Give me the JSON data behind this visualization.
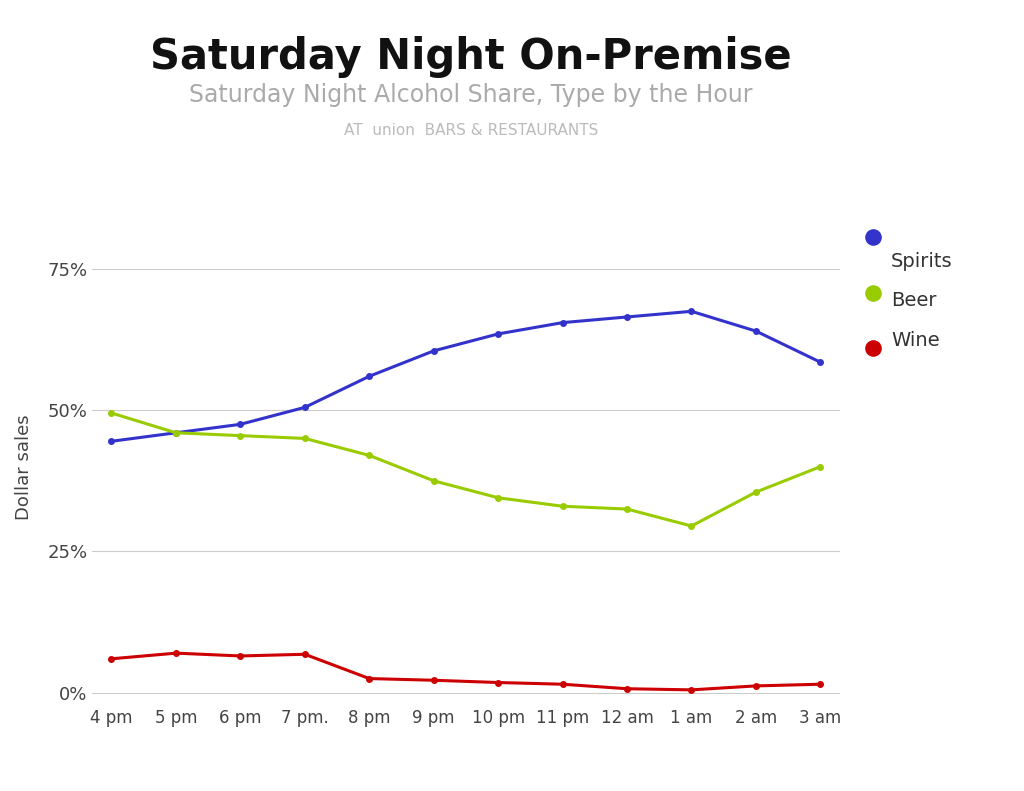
{
  "title": "Saturday Night On-Premise",
  "subtitle": "Saturday Night Alcohol Share, Type by the Hour",
  "xlabel_ticks": [
    "4 pm",
    "5 pm",
    "6 pm",
    "7 pm.",
    "8 pm",
    "9 pm",
    "10 pm",
    "11 pm",
    "12 am",
    "1 am",
    "2 am",
    "3 am"
  ],
  "ylabel": "Dollar sales",
  "yticks": [
    0.0,
    0.25,
    0.5,
    0.75
  ],
  "ytick_labels": [
    "0%",
    "25%",
    "50%",
    "75%"
  ],
  "spirits": [
    0.445,
    0.46,
    0.475,
    0.505,
    0.56,
    0.605,
    0.635,
    0.655,
    0.665,
    0.675,
    0.64,
    0.585
  ],
  "beer": [
    0.495,
    0.46,
    0.455,
    0.45,
    0.42,
    0.375,
    0.345,
    0.33,
    0.325,
    0.295,
    0.355,
    0.4
  ],
  "wine": [
    0.06,
    0.07,
    0.065,
    0.068,
    0.025,
    0.022,
    0.018,
    0.015,
    0.007,
    0.005,
    0.012,
    0.015
  ],
  "spirits_color": "#3333cc",
  "beer_color": "#99cc00",
  "wine_color": "#cc0000",
  "background_color": "#ffffff",
  "grid_color": "#cccccc",
  "title_color": "#111111",
  "subtitle_color": "#aaaaaa",
  "subtitle3_color": "#bbbbbb",
  "legend_labels": [
    "Spirits",
    "Beer",
    "Wine"
  ],
  "title_fontsize": 30,
  "subtitle_fontsize": 17,
  "subtitle3_fontsize": 11
}
